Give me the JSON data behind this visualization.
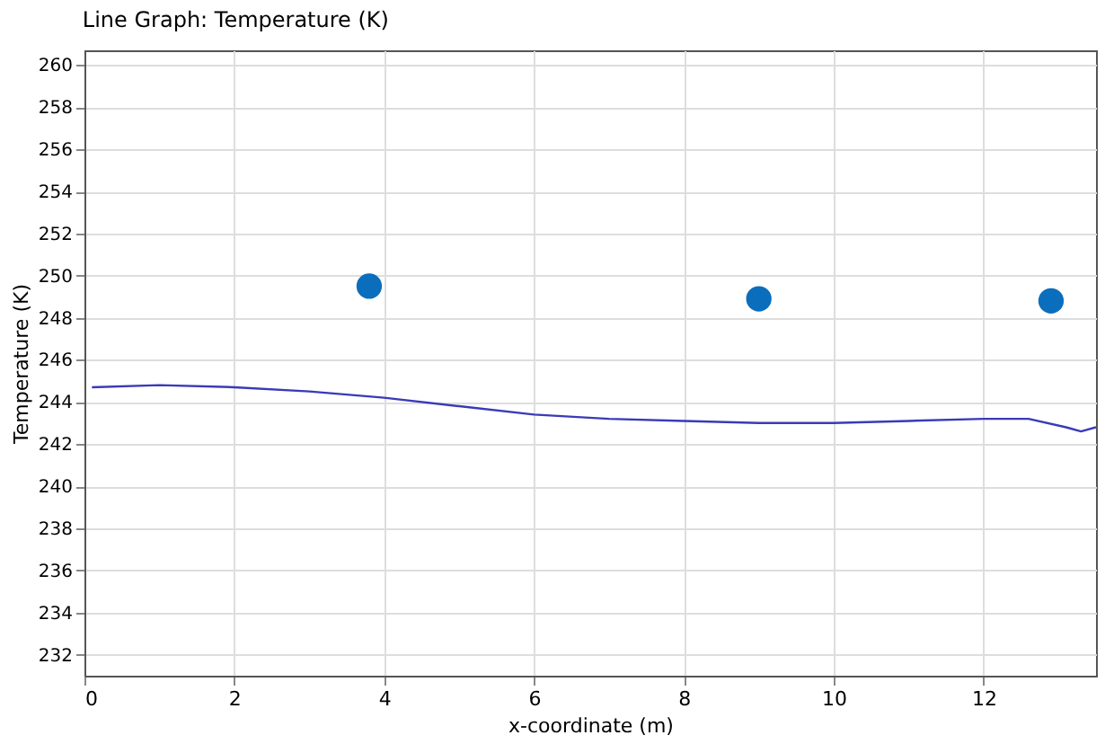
{
  "chart_data": {
    "type": "line",
    "title": "Line Graph: Temperature (K)",
    "xlabel": "x-coordinate (m)",
    "ylabel": "Temperature (K)",
    "xlim": [
      0,
      13.5
    ],
    "ylim": [
      231,
      260.7
    ],
    "xticks": [
      0,
      2,
      4,
      6,
      8,
      10,
      12
    ],
    "yticks": [
      232,
      234,
      236,
      238,
      240,
      242,
      244,
      246,
      248,
      250,
      252,
      254,
      256,
      258,
      260
    ],
    "grid": true,
    "legend": false,
    "series": [
      {
        "color": "#3a3ab8",
        "x": [
          0.1,
          1,
          2,
          3,
          4,
          5,
          6,
          7,
          8,
          9,
          10,
          11,
          12,
          12.6,
          13.1,
          13.3,
          13.5
        ],
        "values": [
          244.7,
          244.8,
          244.7,
          244.5,
          244.2,
          243.8,
          243.4,
          243.2,
          243.1,
          243.0,
          243.0,
          243.1,
          243.2,
          243.2,
          242.8,
          242.6,
          242.8
        ]
      },
      {
        "type": "scatter",
        "color": "#0a6ebd",
        "marker": "circle",
        "x": [
          3.8,
          9.0,
          12.9
        ],
        "values": [
          249.5,
          248.9,
          248.8
        ]
      }
    ]
  }
}
